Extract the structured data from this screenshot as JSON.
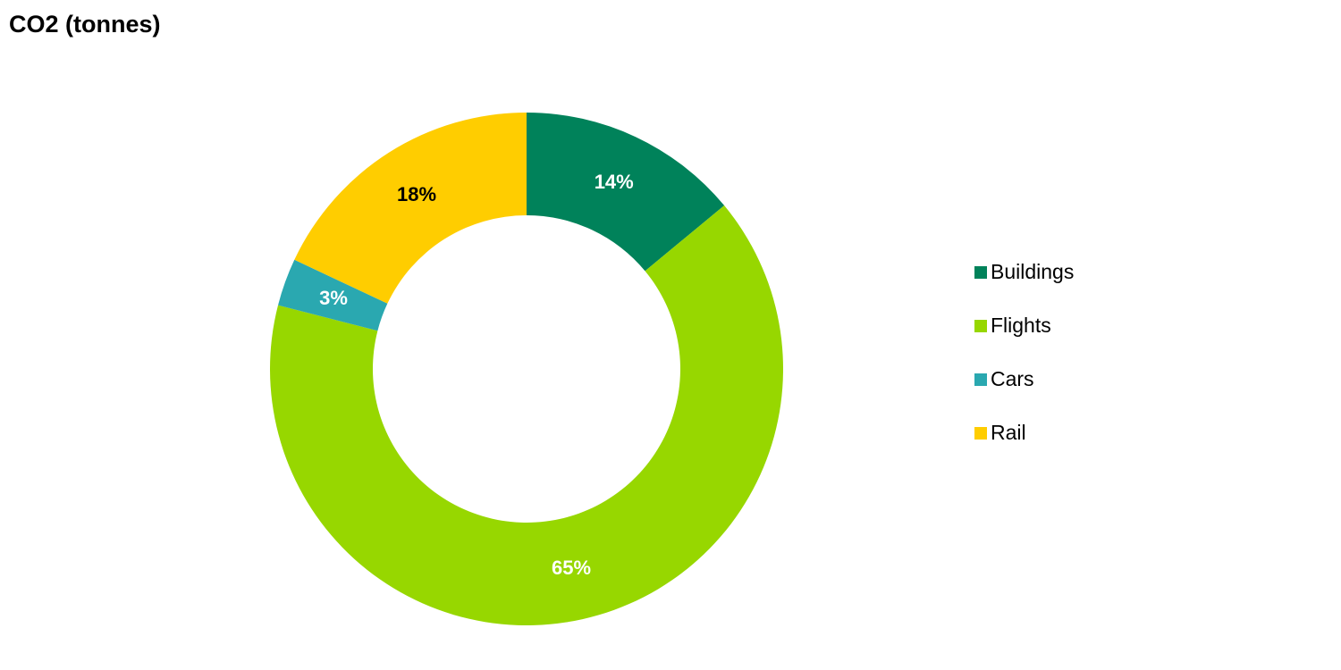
{
  "chart_data": {
    "type": "donut",
    "title": "CO2 (tonnes)",
    "categories": [
      "Buildings",
      "Flights",
      "Cars",
      "Rail"
    ],
    "values": [
      14,
      65,
      3,
      18
    ],
    "value_labels": [
      "14%",
      "65%",
      "3%",
      "18%"
    ],
    "colors": [
      "#00825a",
      "#97d700",
      "#2aa8b0",
      "#ffcd00"
    ],
    "label_colors": [
      "#ffffff",
      "#ffffff",
      "#ffffff",
      "#000000"
    ],
    "legend": "right"
  }
}
